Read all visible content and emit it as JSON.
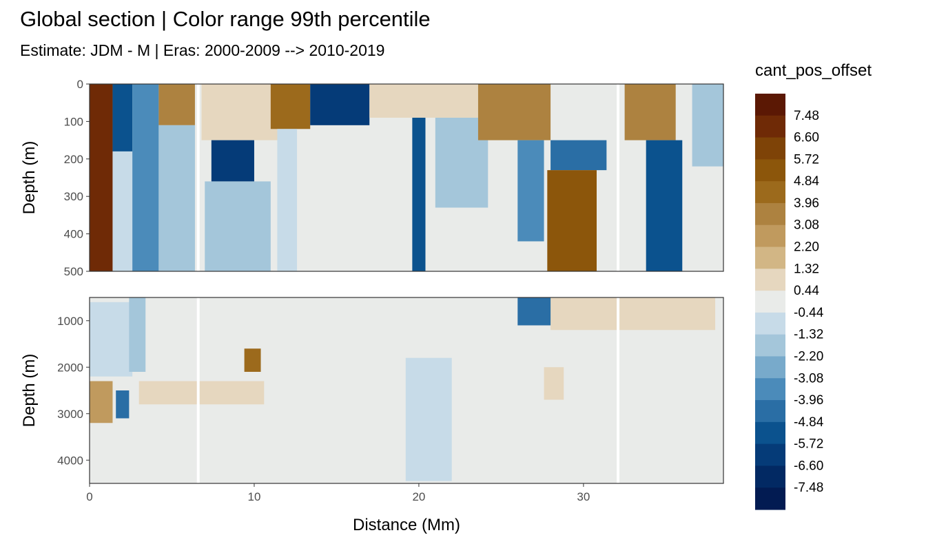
{
  "chart_data": {
    "type": "heatmap",
    "title": "Global section | Color range 99th percentile",
    "subtitle": "Estimate: JDM - M | Eras: 2000-2009 --> 2010-2019",
    "xlabel": "Distance (Mm)",
    "ylabel": "Depth (m)",
    "xlim": [
      0,
      38.5
    ],
    "x_ticks": [
      0,
      10,
      20,
      30
    ],
    "y_reversed": true,
    "grid": true,
    "panels": [
      {
        "name": "upper",
        "ylim": [
          0,
          500
        ],
        "y_ticks": [
          0,
          100,
          200,
          300,
          400,
          500
        ]
      },
      {
        "name": "lower",
        "ylim": [
          500,
          4500
        ],
        "y_ticks": [
          1000,
          2000,
          3000,
          4000
        ]
      }
    ],
    "gaps_at_distance": [
      6.6,
      32.1
    ],
    "legend": {
      "title": "cant_pos_offset",
      "position": "right",
      "labels": [
        "7.48",
        "6.60",
        "5.72",
        "4.84",
        "3.96",
        "3.08",
        "2.20",
        "1.32",
        "0.44",
        "-0.44",
        "-1.32",
        "-2.20",
        "-3.08",
        "-3.96",
        "-4.84",
        "-5.72",
        "-6.60",
        "-7.48"
      ],
      "colors": [
        "#5b1804",
        "#6f2a06",
        "#7e4307",
        "#8c560b",
        "#9c6a1c",
        "#ad8240",
        "#c09a5e",
        "#d2b685",
        "#e6d7bf",
        "#e9ebe9",
        "#c7dbe8",
        "#a4c6da",
        "#78aacb",
        "#4b8bba",
        "#2a6ea5",
        "#0b528e",
        "#053b78",
        "#022963",
        "#021b52"
      ]
    },
    "features_upper": [
      {
        "x0": 0.0,
        "x1": 1.4,
        "d0": 0,
        "d1": 500,
        "value": 6.6
      },
      {
        "x0": 1.4,
        "x1": 2.6,
        "d0": 0,
        "d1": 180,
        "value": -5.7
      },
      {
        "x0": 1.4,
        "x1": 2.6,
        "d0": 180,
        "d1": 500,
        "value": -1.3
      },
      {
        "x0": 2.6,
        "x1": 4.2,
        "d0": 0,
        "d1": 500,
        "value": -3.1
      },
      {
        "x0": 4.2,
        "x1": 6.4,
        "d0": 0,
        "d1": 110,
        "value": 3.1
      },
      {
        "x0": 4.2,
        "x1": 6.4,
        "d0": 110,
        "d1": 500,
        "value": -2.2
      },
      {
        "x0": 6.8,
        "x1": 11.8,
        "d0": 0,
        "d1": 150,
        "value": 1.3
      },
      {
        "x0": 7.4,
        "x1": 10.0,
        "d0": 150,
        "d1": 260,
        "value": -6.6
      },
      {
        "x0": 7.0,
        "x1": 11.0,
        "d0": 260,
        "d1": 500,
        "value": -2.2
      },
      {
        "x0": 11.0,
        "x1": 13.4,
        "d0": 0,
        "d1": 120,
        "value": 3.96
      },
      {
        "x0": 11.4,
        "x1": 12.6,
        "d0": 120,
        "d1": 500,
        "value": -1.3
      },
      {
        "x0": 13.4,
        "x1": 17.0,
        "d0": 0,
        "d1": 110,
        "value": -6.6
      },
      {
        "x0": 17.0,
        "x1": 23.6,
        "d0": 0,
        "d1": 90,
        "value": 1.3
      },
      {
        "x0": 19.6,
        "x1": 20.4,
        "d0": 90,
        "d1": 500,
        "value": -5.7
      },
      {
        "x0": 21.0,
        "x1": 24.2,
        "d0": 90,
        "d1": 330,
        "value": -2.2
      },
      {
        "x0": 23.6,
        "x1": 28.0,
        "d0": 0,
        "d1": 150,
        "value": 3.1
      },
      {
        "x0": 26.0,
        "x1": 27.6,
        "d0": 150,
        "d1": 420,
        "value": -3.96
      },
      {
        "x0": 28.0,
        "x1": 31.4,
        "d0": 150,
        "d1": 230,
        "value": -4.8
      },
      {
        "x0": 27.8,
        "x1": 30.8,
        "d0": 230,
        "d1": 500,
        "value": 4.84
      },
      {
        "x0": 32.5,
        "x1": 35.6,
        "d0": 0,
        "d1": 150,
        "value": 3.08
      },
      {
        "x0": 33.8,
        "x1": 36.0,
        "d0": 150,
        "d1": 500,
        "value": -5.7
      },
      {
        "x0": 36.6,
        "x1": 38.5,
        "d0": 0,
        "d1": 220,
        "value": -2.2
      }
    ],
    "features_lower": [
      {
        "x0": 0.0,
        "x1": 2.6,
        "d0": 600,
        "d1": 2200,
        "value": -1.3
      },
      {
        "x0": 0.0,
        "x1": 1.4,
        "d0": 2300,
        "d1": 3200,
        "value": 2.2
      },
      {
        "x0": 1.6,
        "x1": 2.4,
        "d0": 2500,
        "d1": 3100,
        "value": -4.0
      },
      {
        "x0": 2.4,
        "x1": 3.4,
        "d0": 500,
        "d1": 2100,
        "value": -2.2
      },
      {
        "x0": 3.0,
        "x1": 10.6,
        "d0": 2300,
        "d1": 2800,
        "value": 1.3
      },
      {
        "x0": 9.4,
        "x1": 10.4,
        "d0": 1600,
        "d1": 2100,
        "value": 3.96
      },
      {
        "x0": 19.2,
        "x1": 22.0,
        "d0": 1800,
        "d1": 4450,
        "value": -1.3
      },
      {
        "x0": 26.0,
        "x1": 28.6,
        "d0": 500,
        "d1": 1100,
        "value": -4.0
      },
      {
        "x0": 28.0,
        "x1": 38.0,
        "d0": 500,
        "d1": 1200,
        "value": 1.3
      },
      {
        "x0": 27.6,
        "x1": 28.8,
        "d0": 2000,
        "d1": 2700,
        "value": 1.3
      }
    ]
  }
}
